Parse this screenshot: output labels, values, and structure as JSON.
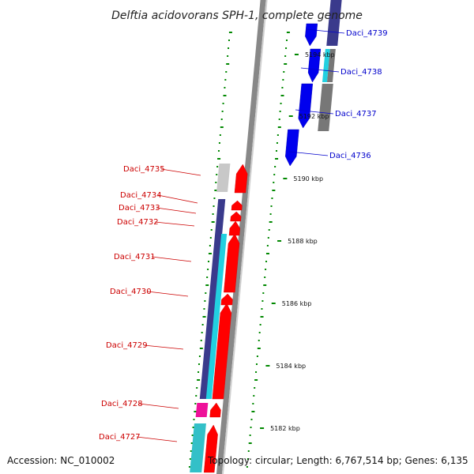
{
  "title": "Delftia acidovorans SPH-1, complete genome",
  "footer": {
    "accession": "Accession: NC_010002",
    "topology": "Topology: circular; Length: 6,767,514 bp; Genes: 6,135"
  },
  "ruler": {
    "unit": "kbp",
    "ticks": [
      {
        "value": 5182,
        "label": "5182 kbp"
      },
      {
        "value": 5184,
        "label": "5184 kbp"
      },
      {
        "value": 5186,
        "label": "5186 kbp"
      },
      {
        "value": 5188,
        "label": "5188 kbp"
      },
      {
        "value": 5190,
        "label": "5190 kbp"
      },
      {
        "value": 5192,
        "label": "5192 kbp"
      },
      {
        "value": 5194,
        "label": "5194 kbp"
      }
    ]
  },
  "colors": {
    "forward_label": "#cc0000",
    "reverse_label": "#0000cc",
    "forward_gene": "#ff0000",
    "reverse_gene": "#0000ee",
    "cog_navy": "#3a3a8c",
    "cog_cyan": "#22d0e0",
    "cog_grey": "#777777",
    "cog_lightgrey": "#c8c8c8",
    "cog_magenta": "#ee1199",
    "cog_teal": "#33c0c8",
    "tick_green": "#008800"
  },
  "genes": [
    {
      "name": "Daci_4727",
      "strand": "forward"
    },
    {
      "name": "Daci_4728",
      "strand": "forward"
    },
    {
      "name": "Daci_4729",
      "strand": "forward"
    },
    {
      "name": "Daci_4730",
      "strand": "forward"
    },
    {
      "name": "Daci_4731",
      "strand": "forward"
    },
    {
      "name": "Daci_4732",
      "strand": "forward"
    },
    {
      "name": "Daci_4733",
      "strand": "forward"
    },
    {
      "name": "Daci_4734",
      "strand": "forward"
    },
    {
      "name": "Daci_4735",
      "strand": "forward"
    },
    {
      "name": "Daci_4736",
      "strand": "reverse"
    },
    {
      "name": "Daci_4737",
      "strand": "reverse"
    },
    {
      "name": "Daci_4738",
      "strand": "reverse"
    },
    {
      "name": "Daci_4739",
      "strand": "reverse"
    }
  ]
}
